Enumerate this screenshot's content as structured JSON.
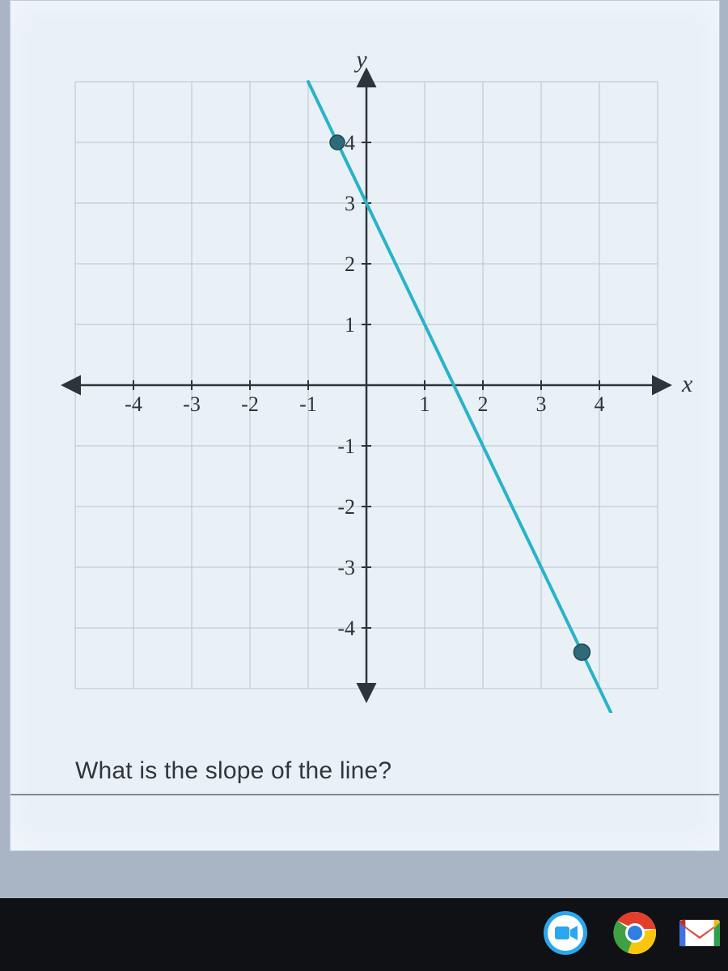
{
  "chart": {
    "type": "line",
    "xlim": [
      -5,
      5
    ],
    "ylim": [
      -5,
      5
    ],
    "xtick_step": 1,
    "ytick_step": 1,
    "x_ticks_labeled": [
      -4,
      -3,
      -2,
      -1,
      1,
      2,
      3,
      4
    ],
    "y_ticks_labeled": [
      4,
      3,
      2,
      1,
      -1,
      -2,
      -3,
      -4
    ],
    "x_axis_label": "x",
    "y_axis_label": "y",
    "background_color": "#e9f1f7",
    "grid_color": "#b7c3cf",
    "axis_color": "#2c343c",
    "axis_width": 2.5,
    "grid_width": 1,
    "tick_length": 6,
    "label_fontsize": 26,
    "axis_label_fontsize": 30,
    "line": {
      "points": [
        [
          -1,
          5
        ],
        [
          4.2,
          -5.4
        ]
      ],
      "color": "#28b3c9",
      "width": 4
    },
    "markers": [
      {
        "x": -0.5,
        "y": 4,
        "r": 9,
        "fill": "#2e6b78",
        "stroke": "#1d4a54"
      },
      {
        "x": 3.7,
        "y": -4.4,
        "r": 10,
        "fill": "#2e6b78",
        "stroke": "#1d4a54"
      }
    ]
  },
  "question": "What is the slope of the line?",
  "taskbar": {
    "background": "#101114",
    "icons": [
      {
        "name": "video-call-icon",
        "type": "meet"
      },
      {
        "name": "chrome-icon",
        "type": "chrome"
      },
      {
        "name": "gmail-icon",
        "type": "gmail"
      }
    ]
  }
}
